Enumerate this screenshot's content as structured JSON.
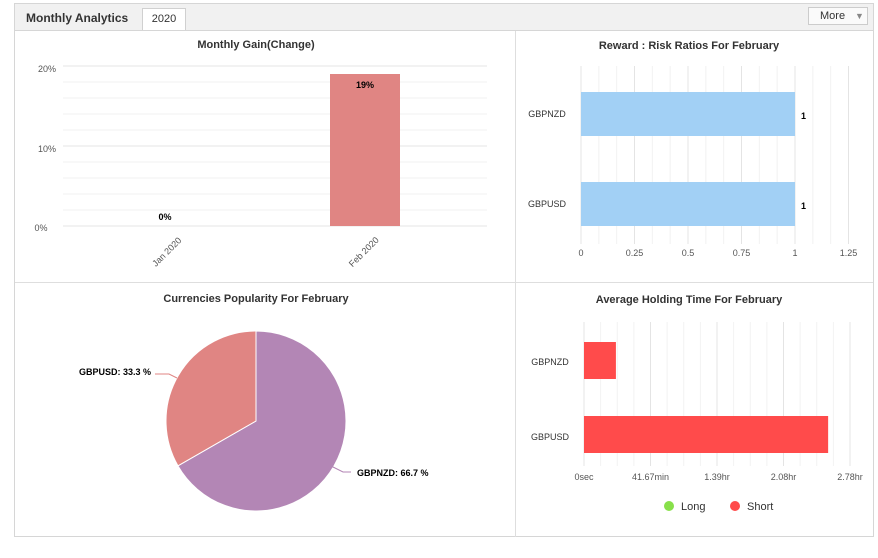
{
  "header": {
    "title": "Monthly Analytics",
    "tab": "2020",
    "more": "More"
  },
  "chart_data": [
    {
      "type": "bar",
      "title": "Monthly Gain(Change)",
      "categories": [
        "Jan 2020",
        "Feb 2020"
      ],
      "values": [
        0,
        19
      ],
      "value_labels": [
        "0%",
        "19%"
      ],
      "y_ticks": [
        "0%",
        "10%",
        "20%"
      ],
      "ylim": [
        0,
        20
      ],
      "color": "#e08583"
    },
    {
      "type": "bar",
      "orientation": "horizontal",
      "title": "Reward : Risk Ratios For February",
      "categories": [
        "GBPNZD",
        "GBPUSD"
      ],
      "values": [
        1,
        1
      ],
      "value_labels": [
        "1",
        "1"
      ],
      "x_ticks": [
        "0",
        "0.25",
        "0.5",
        "0.75",
        "1",
        "1.25"
      ],
      "xlim": [
        0,
        1.25
      ],
      "color": "#a2d0f5"
    },
    {
      "type": "pie",
      "title": "Currencies Popularity For February",
      "slices": [
        {
          "label": "GBPNZD: 66.7 %",
          "value": 66.7,
          "color": "#b386b5"
        },
        {
          "label": "GBPUSD: 33.3 %",
          "value": 33.3,
          "color": "#e08583"
        }
      ]
    },
    {
      "type": "bar",
      "orientation": "horizontal",
      "title": "Average Holding Time For February",
      "categories": [
        "GBPNZD",
        "GBPUSD"
      ],
      "units": "minutes",
      "series": [
        {
          "name": "Long",
          "color": "#88e04a",
          "values": [
            0,
            0
          ]
        },
        {
          "name": "Short",
          "color": "#ff4b4b",
          "values": [
            20,
            153
          ]
        }
      ],
      "x_ticks": [
        "0sec",
        "41.67min",
        "1.39hr",
        "2.08hr",
        "2.78hr"
      ],
      "xlim": [
        0,
        166.7
      ]
    }
  ]
}
